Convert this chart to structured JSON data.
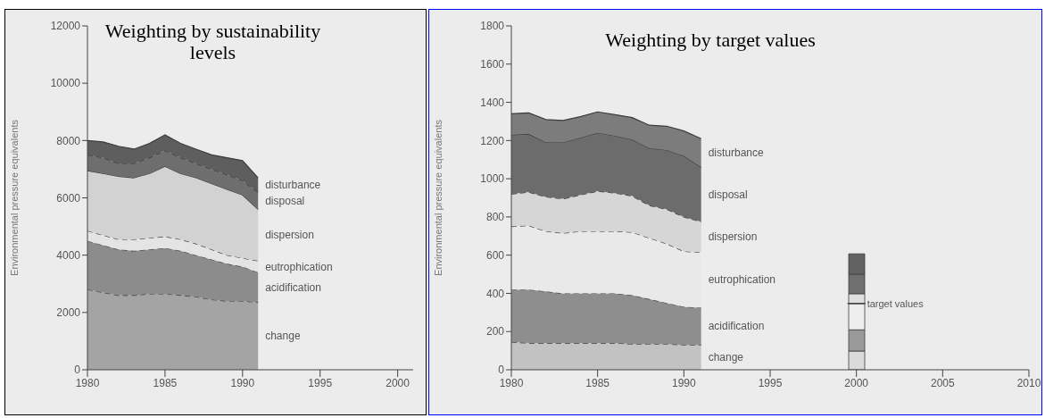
{
  "chart_data": [
    {
      "type": "area",
      "title": "Weighting by sustainability levels",
      "ylabel": "Environmental pressure equivalents",
      "stacked": true,
      "x": [
        1980,
        1981,
        1982,
        1983,
        1984,
        1985,
        1986,
        1987,
        1988,
        1989,
        1990,
        1991
      ],
      "xlim": [
        1980,
        2001
      ],
      "xticks": [
        1980,
        1985,
        1990,
        1995,
        2000
      ],
      "ylim": [
        0,
        12000
      ],
      "yticks": [
        0,
        2000,
        4000,
        6000,
        8000,
        10000,
        12000
      ],
      "series": [
        {
          "name": "change",
          "color": "#a4a4a4",
          "line_style": "dashed",
          "values": [
            2800,
            2700,
            2600,
            2600,
            2650,
            2650,
            2600,
            2550,
            2450,
            2400,
            2400,
            2350
          ]
        },
        {
          "name": "acidification",
          "color": "#8c8c8c",
          "line_style": "dashed",
          "values": [
            1700,
            1650,
            1600,
            1550,
            1550,
            1600,
            1550,
            1450,
            1400,
            1300,
            1200,
            1050
          ]
        },
        {
          "name": "eutrophication",
          "color": "#e4e4e4",
          "line_style": "dashed",
          "values": [
            350,
            350,
            350,
            400,
            400,
            400,
            400,
            400,
            350,
            300,
            300,
            400
          ]
        },
        {
          "name": "dispersion",
          "color": "#d2d2d2",
          "line_style": "solid",
          "values": [
            2100,
            2150,
            2200,
            2150,
            2250,
            2450,
            2300,
            2300,
            2300,
            2300,
            2200,
            1800
          ]
        },
        {
          "name": "disposal",
          "color": "#6e6e6e",
          "line_style": "dashed",
          "values": [
            550,
            550,
            450,
            500,
            550,
            550,
            550,
            500,
            500,
            500,
            500,
            600
          ]
        },
        {
          "name": "disturbance",
          "color": "#5e5e5e",
          "line_style": "solid",
          "values": [
            500,
            550,
            600,
            500,
            500,
            550,
            500,
            500,
            500,
            600,
            700,
            500
          ]
        }
      ]
    },
    {
      "type": "area",
      "title": "Weighting by target values",
      "ylabel": "Environmental pressure equivalents",
      "stacked": true,
      "x": [
        1980,
        1981,
        1982,
        1983,
        1984,
        1985,
        1986,
        1987,
        1988,
        1989,
        1990,
        1991,
        2000
      ],
      "xlim": [
        1980,
        2010
      ],
      "xticks": [
        1980,
        1985,
        1990,
        1995,
        2000,
        2005,
        2010
      ],
      "ylim": [
        0,
        1800
      ],
      "yticks": [
        0,
        200,
        400,
        600,
        800,
        1000,
        1200,
        1400,
        1600,
        1800
      ],
      "series": [
        {
          "name": "change",
          "color": "#c2c2c2",
          "line_style": "dashed",
          "values": [
            145,
            140,
            140,
            140,
            140,
            140,
            140,
            135,
            135,
            135,
            130,
            130,
            null
          ]
        },
        {
          "name": "acidification",
          "color": "#8e8e8e",
          "line_style": "dashed",
          "values": [
            275,
            280,
            270,
            260,
            260,
            260,
            260,
            255,
            235,
            215,
            200,
            195,
            null
          ]
        },
        {
          "name": "eutrophication",
          "color": "#e9e9e9",
          "line_style": "dashed",
          "values": [
            330,
            335,
            315,
            315,
            325,
            325,
            325,
            330,
            320,
            310,
            290,
            290,
            null
          ]
        },
        {
          "name": "dispersion",
          "color": "#d6d6d6",
          "line_style": "dashed",
          "values": [
            170,
            175,
            180,
            180,
            190,
            210,
            200,
            190,
            170,
            180,
            180,
            160,
            null
          ]
        },
        {
          "name": "disposal",
          "color": "#6c6c6c",
          "line_style": "solid",
          "values": [
            310,
            305,
            285,
            295,
            300,
            305,
            300,
            295,
            300,
            310,
            320,
            285,
            null
          ]
        },
        {
          "name": "disturbance",
          "color": "#7c7c7c",
          "line_style": "solid",
          "values": [
            110,
            110,
            120,
            115,
            110,
            110,
            110,
            115,
            120,
            125,
            130,
            150,
            null
          ]
        },
        {
          "type": "bar",
          "color": "#dadada",
          "values": [
            null,
            null,
            null,
            null,
            null,
            null,
            null,
            null,
            null,
            null,
            null,
            null,
            98
          ]
        },
        {
          "type": "bar",
          "color": "#9a9a9a",
          "values": [
            null,
            null,
            null,
            null,
            null,
            null,
            null,
            null,
            null,
            null,
            null,
            null,
            111
          ]
        },
        {
          "type": "bar",
          "color": "#eeeeee",
          "values": [
            null,
            null,
            null,
            null,
            null,
            null,
            null,
            null,
            null,
            null,
            null,
            null,
            138
          ]
        },
        {
          "type": "bar",
          "color": "#e0e0e0",
          "values": [
            null,
            null,
            null,
            null,
            null,
            null,
            null,
            null,
            null,
            null,
            null,
            null,
            51
          ]
        },
        {
          "type": "bar",
          "color": "#707070",
          "values": [
            null,
            null,
            null,
            null,
            null,
            null,
            null,
            null,
            null,
            null,
            null,
            null,
            102
          ]
        },
        {
          "type": "bar",
          "color": "#626262",
          "values": [
            null,
            null,
            null,
            null,
            null,
            null,
            null,
            null,
            null,
            null,
            null,
            null,
            107
          ]
        }
      ],
      "annotations": [
        {
          "text": "target values",
          "x": 2000,
          "y": 347
        }
      ]
    }
  ]
}
